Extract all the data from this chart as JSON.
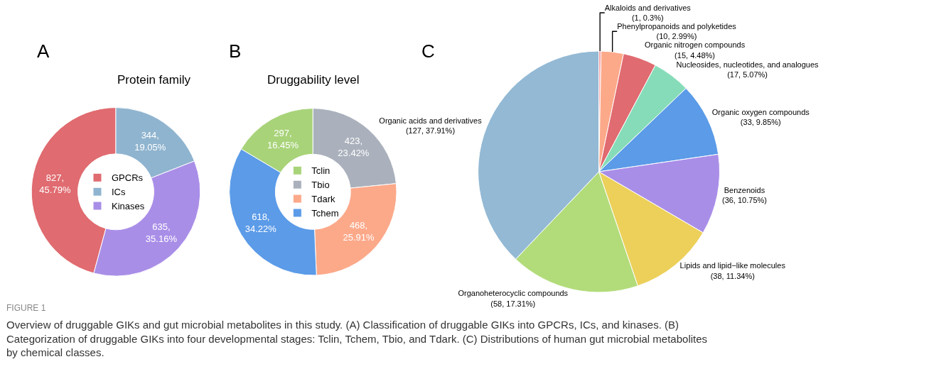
{
  "chart_data": [
    {
      "type": "donut",
      "title": "Protein family",
      "categories": [
        "GPCRs",
        "ICs",
        "Kinases"
      ],
      "values": [
        827,
        344,
        635
      ],
      "colors": [
        "#e06b70",
        "#8fb4cf",
        "#a98ee8"
      ],
      "value_labels": [
        "827,\n45.79%",
        "344,\n19.05%",
        "635,\n35.16%"
      ],
      "legend": "center",
      "annotations": [
        "A",
        "FIGURE 1",
        "Overview of druggable GIKs and gut microbial metabolites in this study. (A) Classification of druggable GIKs into GPCRs, ICs, and kinases. (B) Categorization of druggable GIKs into four developmental stages: Tclin, Tchem, Tbio, and Tdark. (C) Distributions of human gut microbial metabolites by chemical classes."
      ]
    },
    {
      "type": "donut",
      "title": "Druggability level",
      "categories": [
        "Tclin",
        "Tbio",
        "Tdark",
        "Tchem"
      ],
      "values": [
        297,
        423,
        468,
        618
      ],
      "colors": [
        "#a8d379",
        "#aab1bc",
        "#fca98a",
        "#5b9be8"
      ],
      "value_labels": [
        "297,\n16.45%",
        "423,\n23.42%",
        "468,\n25.91%",
        "618,\n34.22%"
      ],
      "legend": "center",
      "annotations": [
        "B"
      ]
    },
    {
      "type": "pie",
      "categories": [
        "Alkaloids and derivatives",
        "Phenylpropanoids and polyketides",
        "Organic nitrogen compounds",
        "Nucleosides, nucleotides, and analogues",
        "Organic oxygen compounds",
        "Benzenoids",
        "Lipids and lipid−like molecules",
        "Organoheterocyclic compounds",
        "Organic acids and derivatives"
      ],
      "values": [
        1,
        10,
        15,
        17,
        33,
        36,
        38,
        58,
        127
      ],
      "colors": [
        "#f4a0a8",
        "#fca98a",
        "#e06b70",
        "#86dcb8",
        "#5b9be8",
        "#a98ee8",
        "#ecd05a",
        "#b2dc7a",
        "#93b9d4"
      ],
      "value_labels": [
        "(1, 0.3%)",
        "(10, 2.99%)",
        "(15, 4.48%)",
        "(17, 5.07%)",
        "(33, 9.85%)",
        "(36, 10.75%)",
        "(38, 11.34%)",
        "(58, 17.31%)",
        "(127, 37.91%)"
      ],
      "annotations": [
        "C"
      ]
    }
  ]
}
